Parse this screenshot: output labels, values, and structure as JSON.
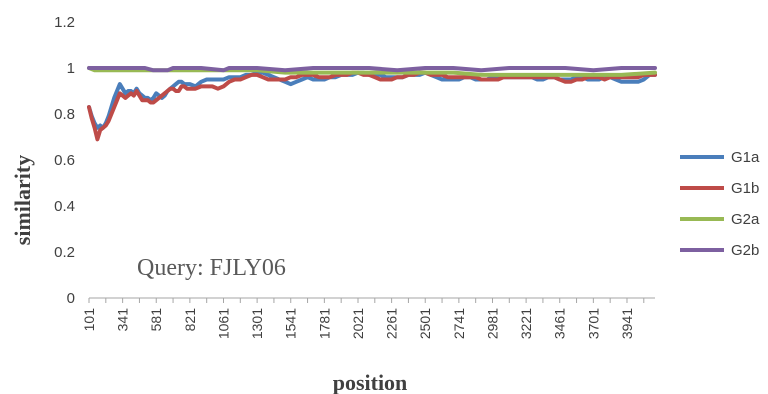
{
  "chart_data": {
    "type": "line",
    "title": "",
    "xlabel": "position",
    "ylabel": "similarity",
    "ylim": [
      0,
      1.2
    ],
    "yticks": [
      "0",
      "0.2",
      "0.4",
      "0.6",
      "0.8",
      "1",
      "1.2"
    ],
    "xlim": [
      101,
      4141
    ],
    "xticks": [
      "101",
      "341",
      "581",
      "821",
      "1061",
      "1301",
      "1541",
      "1781",
      "2021",
      "2261",
      "2501",
      "2741",
      "2981",
      "3221",
      "3461",
      "3701",
      "3941"
    ],
    "grid": false,
    "legend": "right",
    "annotation": "Query: FJLY06",
    "series": [
      {
        "name": "G1a",
        "color": "#4A7EBB",
        "x": [
          101,
          121,
          141,
          161,
          181,
          201,
          221,
          241,
          261,
          281,
          301,
          321,
          341,
          361,
          381,
          401,
          421,
          441,
          461,
          481,
          501,
          521,
          541,
          561,
          581,
          601,
          621,
          641,
          661,
          681,
          701,
          721,
          741,
          761,
          781,
          801,
          821,
          861,
          901,
          941,
          981,
          1021,
          1061,
          1101,
          1141,
          1181,
          1221,
          1261,
          1301,
          1341,
          1381,
          1421,
          1461,
          1501,
          1541,
          1581,
          1621,
          1661,
          1701,
          1741,
          1781,
          1821,
          1861,
          1901,
          1941,
          1981,
          2021,
          2061,
          2101,
          2141,
          2181,
          2221,
          2261,
          2301,
          2341,
          2381,
          2421,
          2461,
          2501,
          2541,
          2581,
          2621,
          2661,
          2701,
          2741,
          2781,
          2821,
          2861,
          2901,
          2941,
          2981,
          3021,
          3061,
          3101,
          3141,
          3181,
          3221,
          3261,
          3301,
          3341,
          3381,
          3421,
          3461,
          3501,
          3541,
          3581,
          3621,
          3661,
          3701,
          3741,
          3781,
          3821,
          3861,
          3901,
          3941,
          3981,
          4021,
          4061,
          4101,
          4141
        ],
        "values": [
          0.83,
          0.79,
          0.76,
          0.74,
          0.75,
          0.74,
          0.76,
          0.79,
          0.83,
          0.87,
          0.9,
          0.93,
          0.91,
          0.89,
          0.9,
          0.9,
          0.89,
          0.91,
          0.89,
          0.88,
          0.87,
          0.87,
          0.86,
          0.87,
          0.89,
          0.88,
          0.87,
          0.88,
          0.9,
          0.91,
          0.92,
          0.93,
          0.94,
          0.94,
          0.93,
          0.93,
          0.93,
          0.92,
          0.94,
          0.95,
          0.95,
          0.95,
          0.95,
          0.96,
          0.96,
          0.96,
          0.97,
          0.97,
          0.98,
          0.98,
          0.97,
          0.96,
          0.95,
          0.94,
          0.93,
          0.94,
          0.95,
          0.96,
          0.95,
          0.95,
          0.95,
          0.96,
          0.96,
          0.97,
          0.97,
          0.97,
          0.98,
          0.98,
          0.97,
          0.97,
          0.97,
          0.96,
          0.96,
          0.96,
          0.96,
          0.97,
          0.97,
          0.97,
          0.98,
          0.97,
          0.96,
          0.95,
          0.95,
          0.95,
          0.95,
          0.96,
          0.96,
          0.95,
          0.95,
          0.95,
          0.96,
          0.96,
          0.96,
          0.96,
          0.96,
          0.96,
          0.96,
          0.96,
          0.95,
          0.95,
          0.96,
          0.96,
          0.95,
          0.95,
          0.95,
          0.96,
          0.96,
          0.95,
          0.95,
          0.95,
          0.96,
          0.96,
          0.95,
          0.94,
          0.94,
          0.94,
          0.94,
          0.95,
          0.97,
          0.97
        ]
      },
      {
        "name": "G1b",
        "color": "#BE4B48",
        "x": [
          101,
          121,
          141,
          161,
          181,
          201,
          221,
          241,
          261,
          281,
          301,
          321,
          341,
          361,
          381,
          401,
          421,
          441,
          461,
          481,
          501,
          521,
          541,
          561,
          581,
          601,
          621,
          641,
          661,
          681,
          701,
          721,
          741,
          761,
          781,
          801,
          821,
          861,
          901,
          941,
          981,
          1021,
          1061,
          1101,
          1141,
          1181,
          1221,
          1261,
          1301,
          1341,
          1381,
          1421,
          1461,
          1501,
          1541,
          1581,
          1621,
          1661,
          1701,
          1741,
          1781,
          1821,
          1861,
          1901,
          1941,
          1981,
          2021,
          2061,
          2101,
          2141,
          2181,
          2221,
          2261,
          2301,
          2341,
          2381,
          2421,
          2461,
          2501,
          2541,
          2581,
          2621,
          2661,
          2701,
          2741,
          2781,
          2821,
          2861,
          2901,
          2941,
          2981,
          3021,
          3061,
          3101,
          3141,
          3181,
          3221,
          3261,
          3301,
          3341,
          3381,
          3421,
          3461,
          3501,
          3541,
          3581,
          3621,
          3661,
          3701,
          3741,
          3781,
          3821,
          3861,
          3901,
          3941,
          3981,
          4021,
          4061,
          4101,
          4141
        ],
        "values": [
          0.83,
          0.78,
          0.74,
          0.69,
          0.73,
          0.74,
          0.75,
          0.77,
          0.8,
          0.83,
          0.86,
          0.89,
          0.88,
          0.87,
          0.88,
          0.89,
          0.88,
          0.9,
          0.88,
          0.86,
          0.86,
          0.86,
          0.85,
          0.85,
          0.86,
          0.87,
          0.88,
          0.89,
          0.9,
          0.91,
          0.91,
          0.9,
          0.9,
          0.92,
          0.92,
          0.91,
          0.91,
          0.91,
          0.92,
          0.92,
          0.92,
          0.91,
          0.92,
          0.94,
          0.95,
          0.95,
          0.96,
          0.97,
          0.97,
          0.96,
          0.95,
          0.95,
          0.95,
          0.95,
          0.96,
          0.96,
          0.97,
          0.97,
          0.97,
          0.96,
          0.96,
          0.96,
          0.97,
          0.97,
          0.97,
          0.98,
          0.98,
          0.97,
          0.97,
          0.96,
          0.95,
          0.95,
          0.95,
          0.96,
          0.96,
          0.97,
          0.97,
          0.98,
          0.98,
          0.97,
          0.97,
          0.97,
          0.96,
          0.96,
          0.96,
          0.96,
          0.96,
          0.96,
          0.95,
          0.95,
          0.95,
          0.95,
          0.96,
          0.96,
          0.96,
          0.96,
          0.96,
          0.96,
          0.96,
          0.96,
          0.96,
          0.96,
          0.95,
          0.94,
          0.94,
          0.95,
          0.95,
          0.96,
          0.96,
          0.96,
          0.95,
          0.96,
          0.96,
          0.96,
          0.96,
          0.96,
          0.96,
          0.97,
          0.97,
          0.97
        ]
      },
      {
        "name": "G2a",
        "color": "#98B954",
        "x": [
          101,
          141,
          181,
          301,
          501,
          701,
          901,
          1101,
          1301,
          1501,
          1701,
          1901,
          2101,
          2301,
          2501,
          2701,
          2901,
          3101,
          3301,
          3501,
          3701,
          3901,
          4141
        ],
        "values": [
          1.0,
          0.99,
          0.99,
          0.99,
          0.99,
          0.99,
          0.99,
          0.99,
          0.99,
          0.98,
          0.98,
          0.98,
          0.98,
          0.98,
          0.98,
          0.98,
          0.97,
          0.97,
          0.97,
          0.97,
          0.97,
          0.97,
          0.98
        ]
      },
      {
        "name": "G2b",
        "color": "#7D60A0",
        "x": [
          101,
          301,
          501,
          561,
          661,
          701,
          901,
          1061,
          1101,
          1301,
          1501,
          1701,
          1901,
          2101,
          2301,
          2501,
          2701,
          2901,
          3101,
          3301,
          3501,
          3701,
          3901,
          4141
        ],
        "values": [
          1.0,
          1.0,
          1.0,
          0.99,
          0.99,
          1.0,
          1.0,
          0.99,
          1.0,
          1.0,
          0.99,
          1.0,
          1.0,
          1.0,
          0.99,
          1.0,
          1.0,
          0.99,
          1.0,
          1.0,
          1.0,
          0.99,
          1.0,
          1.0
        ]
      }
    ]
  }
}
